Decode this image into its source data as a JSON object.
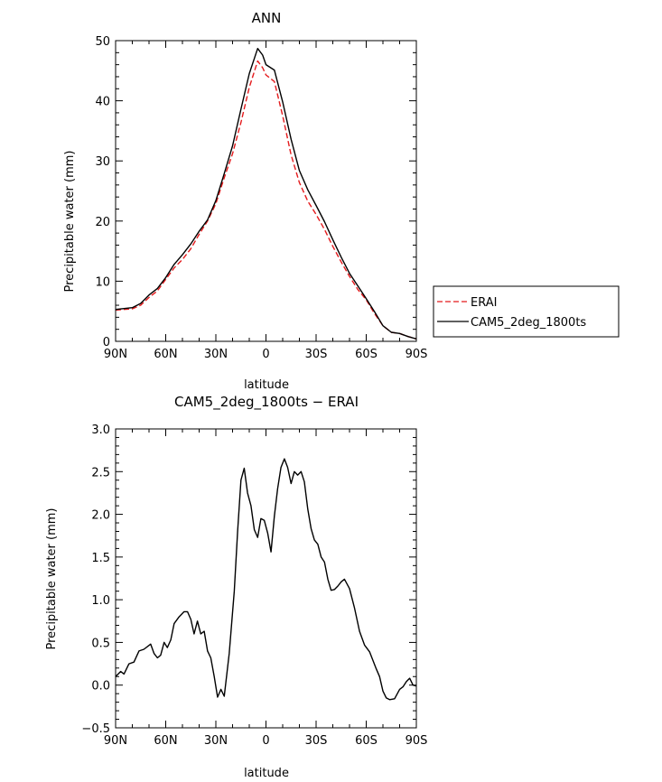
{
  "chart_data": [
    {
      "type": "line",
      "title": "ANN",
      "xlabel": "latitude",
      "ylabel": "Precipitable water (mm)",
      "x_tick_labels": [
        "90N",
        "60N",
        "30N",
        "0",
        "30S",
        "60S",
        "90S"
      ],
      "x_tick_values": [
        90,
        60,
        30,
        0,
        -30,
        -60,
        -90
      ],
      "y_ticks": [
        0,
        10,
        20,
        30,
        40,
        50
      ],
      "xlim": [
        90,
        -90
      ],
      "ylim": [
        0,
        50
      ],
      "legend_position": "right",
      "series": [
        {
          "name": "ERAI",
          "color": "#e41a1c",
          "dash": "dashed",
          "x": [
            90,
            80,
            75,
            70,
            65,
            60,
            55,
            50,
            45,
            40,
            35,
            30,
            25,
            20,
            15,
            10,
            5,
            2,
            0,
            -5,
            -10,
            -15,
            -20,
            -25,
            -30,
            -35,
            -40,
            -45,
            -50,
            -55,
            -60,
            -65,
            -70,
            -75,
            -80,
            -85,
            -90
          ],
          "values": [
            5.2,
            5.4,
            6.0,
            7.3,
            8.4,
            10.3,
            12.2,
            13.6,
            15.4,
            17.8,
            20.0,
            22.9,
            27.2,
            31.2,
            36.4,
            42.2,
            46.6,
            45.5,
            44.3,
            43.2,
            37.5,
            31.0,
            26.4,
            23.3,
            21.1,
            18.6,
            15.8,
            13.2,
            10.8,
            8.6,
            6.9,
            4.6,
            2.6,
            1.5,
            1.3,
            0.8,
            0.4
          ]
        },
        {
          "name": "CAM5_2deg_1800ts",
          "color": "#000000",
          "dash": "solid",
          "x": [
            90,
            80,
            75,
            70,
            65,
            60,
            55,
            50,
            45,
            40,
            35,
            30,
            25,
            20,
            15,
            10,
            5,
            2,
            0,
            -5,
            -10,
            -15,
            -20,
            -25,
            -30,
            -35,
            -40,
            -45,
            -50,
            -55,
            -60,
            -65,
            -70,
            -75,
            -80,
            -85,
            -90
          ],
          "values": [
            5.3,
            5.6,
            6.3,
            7.7,
            8.8,
            10.6,
            12.8,
            14.4,
            16.2,
            18.3,
            20.2,
            23.4,
            27.9,
            32.5,
            38.6,
            44.5,
            48.7,
            47.6,
            46.0,
            45.1,
            39.8,
            33.6,
            28.4,
            25.2,
            22.6,
            19.9,
            16.9,
            14.0,
            11.3,
            9.2,
            7.1,
            4.9,
            2.6,
            1.5,
            1.3,
            0.8,
            0.4
          ]
        }
      ]
    },
    {
      "type": "line",
      "title": "CAM5_2deg_1800ts  −  ERAI",
      "xlabel": "latitude",
      "ylabel": "Precipitable water (mm)",
      "x_tick_labels": [
        "90N",
        "60N",
        "30N",
        "0",
        "30S",
        "60S",
        "90S"
      ],
      "x_tick_values": [
        90,
        60,
        30,
        0,
        -30,
        -60,
        -90
      ],
      "y_ticks": [
        -0.5,
        0.0,
        0.5,
        1.0,
        1.5,
        2.0,
        2.5,
        3.0
      ],
      "y_tick_labels": [
        "−0.5",
        "0.0",
        "0.5",
        "1.0",
        "1.5",
        "2.0",
        "2.5",
        "3.0"
      ],
      "xlim": [
        90,
        -90
      ],
      "ylim": [
        -0.5,
        3.0
      ],
      "series": [
        {
          "name": "",
          "color": "#000000",
          "dash": "solid",
          "x": [
            90,
            87,
            85,
            82,
            79,
            76,
            73,
            69,
            67,
            65,
            63,
            61,
            59,
            57,
            55,
            52,
            49,
            47,
            45,
            43,
            41,
            39,
            37,
            35,
            33,
            31,
            29,
            27,
            25,
            22,
            19,
            17,
            15,
            13,
            11,
            9,
            7,
            5,
            3,
            1,
            -1,
            -3,
            -5,
            -7,
            -9,
            -11,
            -13,
            -15,
            -17,
            -19,
            -21,
            -23,
            -25,
            -27,
            -29,
            -31,
            -33,
            -35,
            -37,
            -39,
            -41,
            -43,
            -45,
            -47,
            -50,
            -53,
            -56,
            -59,
            -62,
            -64,
            -66,
            -68,
            -70,
            -72,
            -74,
            -77,
            -80,
            -82,
            -84,
            -86,
            -88,
            -90
          ],
          "values": [
            0.1,
            0.16,
            0.13,
            0.25,
            0.27,
            0.4,
            0.42,
            0.48,
            0.37,
            0.32,
            0.35,
            0.5,
            0.44,
            0.53,
            0.72,
            0.8,
            0.86,
            0.86,
            0.77,
            0.6,
            0.75,
            0.6,
            0.63,
            0.4,
            0.32,
            0.1,
            -0.14,
            -0.05,
            -0.13,
            0.37,
            1.1,
            1.8,
            2.4,
            2.54,
            2.25,
            2.1,
            1.82,
            1.73,
            1.95,
            1.93,
            1.78,
            1.56,
            1.98,
            2.3,
            2.55,
            2.65,
            2.55,
            2.36,
            2.5,
            2.46,
            2.5,
            2.38,
            2.06,
            1.83,
            1.7,
            1.65,
            1.5,
            1.44,
            1.24,
            1.11,
            1.12,
            1.16,
            1.21,
            1.24,
            1.13,
            0.9,
            0.63,
            0.47,
            0.39,
            0.29,
            0.19,
            0.1,
            -0.07,
            -0.15,
            -0.17,
            -0.16,
            -0.05,
            -0.02,
            0.04,
            0.08,
            0.0,
            -0.01
          ]
        }
      ]
    }
  ]
}
